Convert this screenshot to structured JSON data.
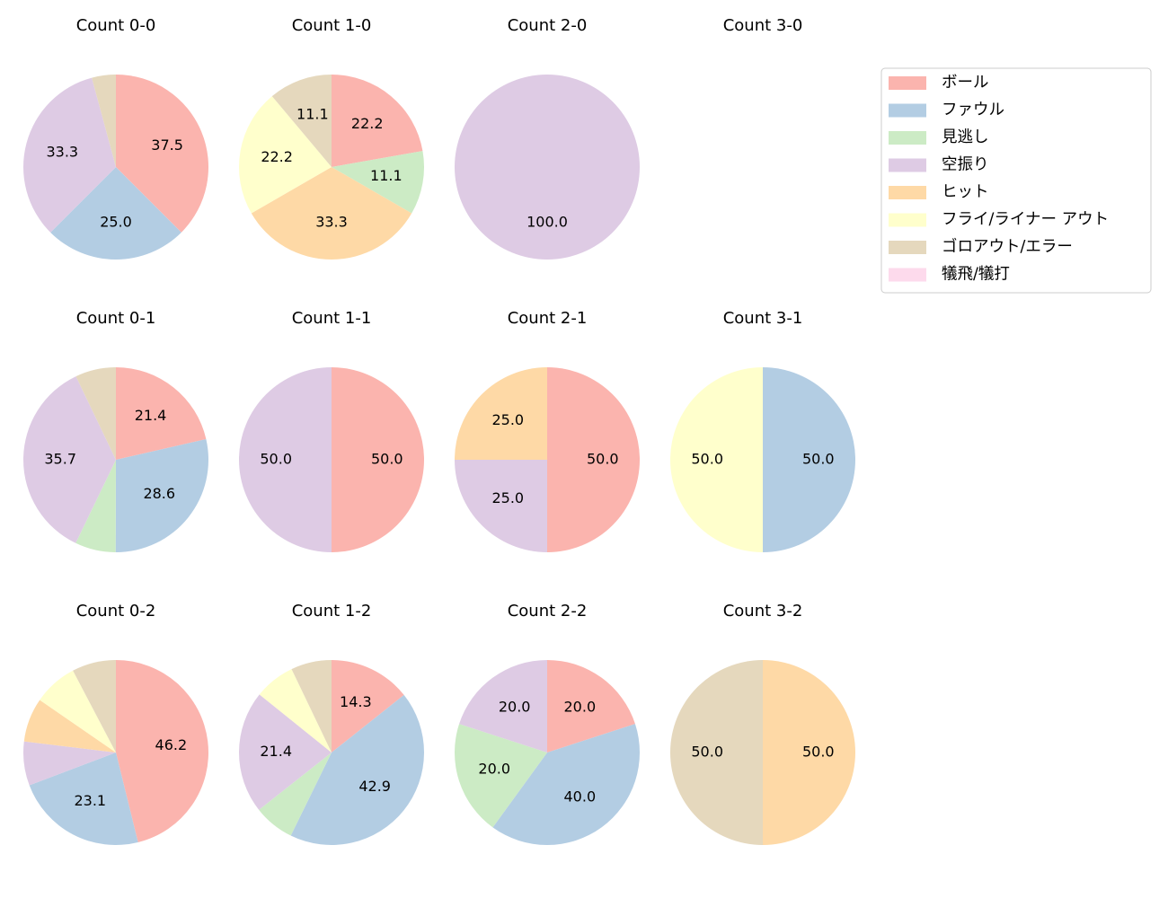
{
  "legend": {
    "items": [
      {
        "name": "ボール",
        "color": "#fbb4ae"
      },
      {
        "name": "ファウル",
        "color": "#b3cde3"
      },
      {
        "name": "見逃し",
        "color": "#ccebc5"
      },
      {
        "name": "空振り",
        "color": "#decbe4"
      },
      {
        "name": "ヒット",
        "color": "#fed9a6"
      },
      {
        "name": "フライ/ライナー アウト",
        "color": "#ffffcc"
      },
      {
        "name": "ゴロアウト/エラー",
        "color": "#e5d8bd"
      },
      {
        "name": "犠飛/犠打",
        "color": "#fddaec"
      }
    ]
  },
  "chart_data": [
    {
      "type": "pie",
      "title": "Count 0-0",
      "values": [
        37.5,
        25,
        0,
        33.3,
        0,
        0,
        4.2,
        0
      ],
      "value_labels": [
        "37.5",
        "25.0",
        null,
        "33.3",
        null,
        null,
        null,
        null
      ]
    },
    {
      "type": "pie",
      "title": "Count 1-0",
      "values": [
        22.2,
        0,
        11.1,
        0,
        33.3,
        22.2,
        11.1,
        0
      ],
      "value_labels": [
        "22.2",
        null,
        "11.1",
        null,
        "33.3",
        "22.2",
        "11.1",
        null
      ]
    },
    {
      "type": "pie",
      "title": "Count 2-0",
      "values": [
        0,
        0,
        0,
        100,
        0,
        0,
        0,
        0
      ],
      "value_labels": [
        null,
        null,
        null,
        "100.0",
        null,
        null,
        null,
        null
      ]
    },
    {
      "type": "pie",
      "title": "Count 3-0"
    },
    {
      "type": "pie",
      "title": "Count 0-1",
      "values": [
        21.4,
        28.6,
        7.1,
        35.7,
        0,
        0,
        7.1,
        0
      ],
      "value_labels": [
        "21.4",
        "28.6",
        null,
        "35.7",
        null,
        null,
        null,
        null
      ]
    },
    {
      "type": "pie",
      "title": "Count 1-1",
      "values": [
        50,
        0,
        0,
        50,
        0,
        0,
        0,
        0
      ],
      "value_labels": [
        "50.0",
        null,
        null,
        "50.0",
        null,
        null,
        null,
        null
      ]
    },
    {
      "type": "pie",
      "title": "Count 2-1",
      "values": [
        50,
        0,
        0,
        25,
        25,
        0,
        0,
        0
      ],
      "value_labels": [
        "50.0",
        null,
        null,
        "25.0",
        "25.0",
        null,
        null,
        null
      ]
    },
    {
      "type": "pie",
      "title": "Count 3-1",
      "values": [
        0,
        50,
        0,
        0,
        0,
        50,
        0,
        0
      ],
      "value_labels": [
        null,
        "50.0",
        null,
        null,
        null,
        "50.0",
        null,
        null
      ]
    },
    {
      "type": "pie",
      "title": "Count 0-2",
      "values": [
        46.2,
        23.1,
        0,
        7.7,
        7.7,
        7.7,
        7.7,
        0
      ],
      "value_labels": [
        "46.2",
        "23.1",
        null,
        null,
        null,
        null,
        null,
        null
      ]
    },
    {
      "type": "pie",
      "title": "Count 1-2",
      "values": [
        14.3,
        42.9,
        7.1,
        21.4,
        0,
        7.1,
        7.1,
        0
      ],
      "value_labels": [
        "14.3",
        "42.9",
        null,
        "21.4",
        null,
        null,
        null,
        null
      ]
    },
    {
      "type": "pie",
      "title": "Count 2-2",
      "values": [
        20,
        40,
        20,
        20,
        0,
        0,
        0,
        0
      ],
      "value_labels": [
        "20.0",
        "40.0",
        "20.0",
        "20.0",
        null,
        null,
        null,
        null
      ]
    },
    {
      "type": "pie",
      "title": "Count 3-2",
      "values": [
        0,
        0,
        0,
        0,
        50,
        0,
        50,
        0
      ],
      "value_labels": [
        null,
        null,
        null,
        null,
        "50.0",
        null,
        "50.0",
        null
      ]
    }
  ]
}
